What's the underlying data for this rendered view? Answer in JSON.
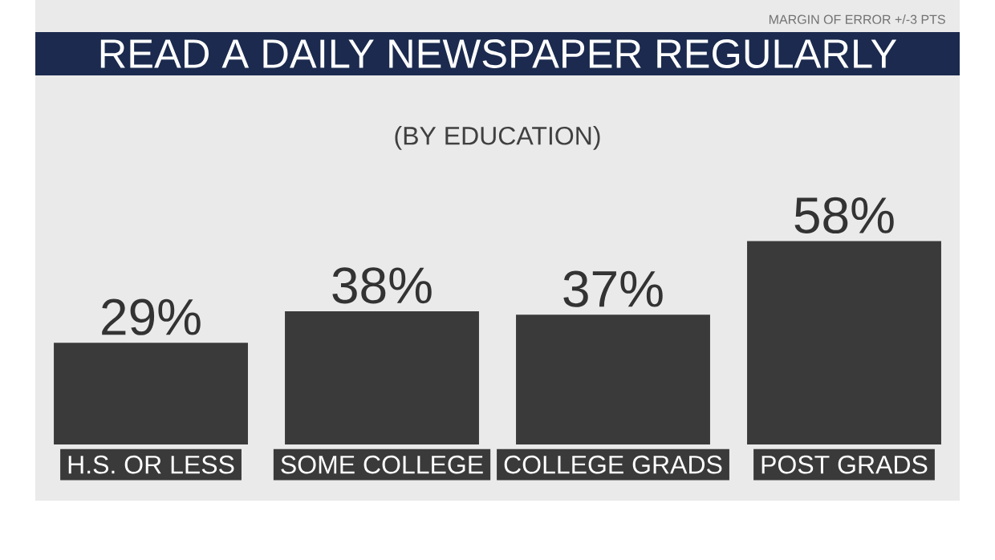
{
  "chart_data": {
    "type": "bar",
    "title": "READ A DAILY NEWSPAPER REGULARLY",
    "subtitle": "(BY EDUCATION)",
    "annotations": [
      "MARGIN OF ERROR +/-3 PTS"
    ],
    "categories": [
      "H.S. OR LESS",
      "SOME COLLEGE",
      "COLLEGE GRADS",
      "POST GRADS"
    ],
    "values": [
      29,
      38,
      37,
      58
    ],
    "value_labels": [
      "29%",
      "38%",
      "37%",
      "58%"
    ],
    "color": "#3a3a3a"
  }
}
